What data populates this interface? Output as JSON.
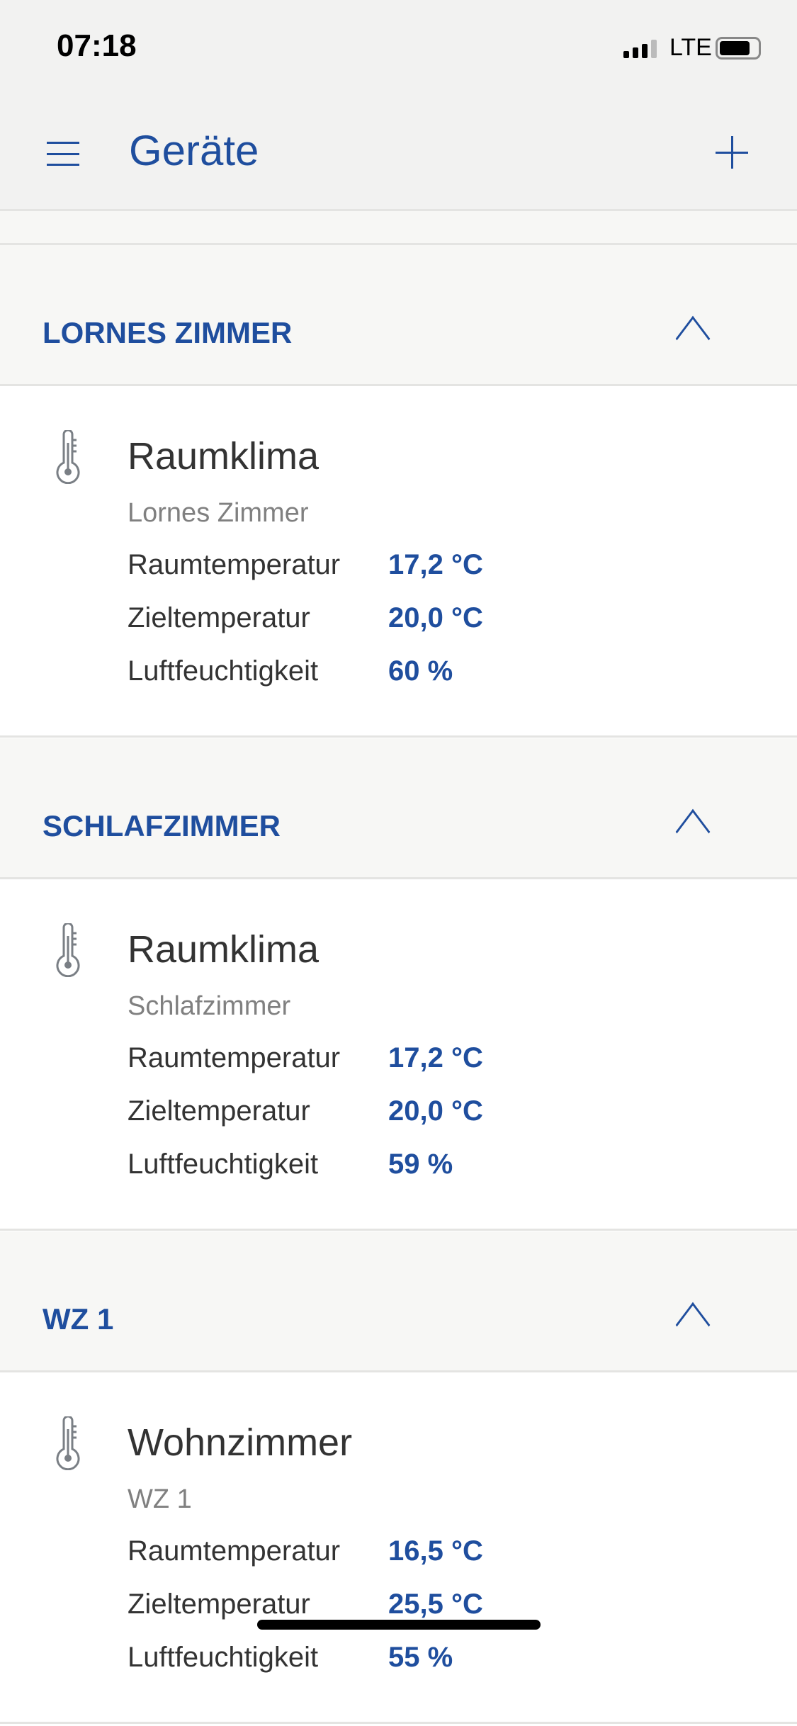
{
  "status_bar": {
    "time": "07:18",
    "network": "LTE"
  },
  "header": {
    "title": "Geräte",
    "menu_icon": "hamburger-icon",
    "add_icon": "plus-icon"
  },
  "colors": {
    "accent": "#1f4e9e",
    "text": "#333333",
    "muted": "#808080"
  },
  "rooms": [
    {
      "name": "LORNES ZIMMER",
      "device": {
        "name": "Raumklima",
        "room": "Lornes Zimmer",
        "rows": [
          {
            "label": "Raumtemperatur",
            "value": "17,2 °C"
          },
          {
            "label": "Zieltemperatur",
            "value": "20,0 °C"
          },
          {
            "label": "Luftfeuchtigkeit",
            "value": "60 %"
          }
        ]
      }
    },
    {
      "name": "SCHLAFZIMMER",
      "device": {
        "name": "Raumklima",
        "room": "Schlafzimmer",
        "rows": [
          {
            "label": "Raumtemperatur",
            "value": "17,2 °C"
          },
          {
            "label": "Zieltemperatur",
            "value": "20,0 °C"
          },
          {
            "label": "Luftfeuchtigkeit",
            "value": "59 %"
          }
        ]
      }
    },
    {
      "name": "WZ 1",
      "device": {
        "name": "Wohnzimmer",
        "room": "WZ 1",
        "rows": [
          {
            "label": "Raumtemperatur",
            "value": "16,5 °C"
          },
          {
            "label": "Zieltemperatur",
            "value": "25,5 °C"
          },
          {
            "label": "Luftfeuchtigkeit",
            "value": "55 %"
          }
        ]
      }
    }
  ]
}
